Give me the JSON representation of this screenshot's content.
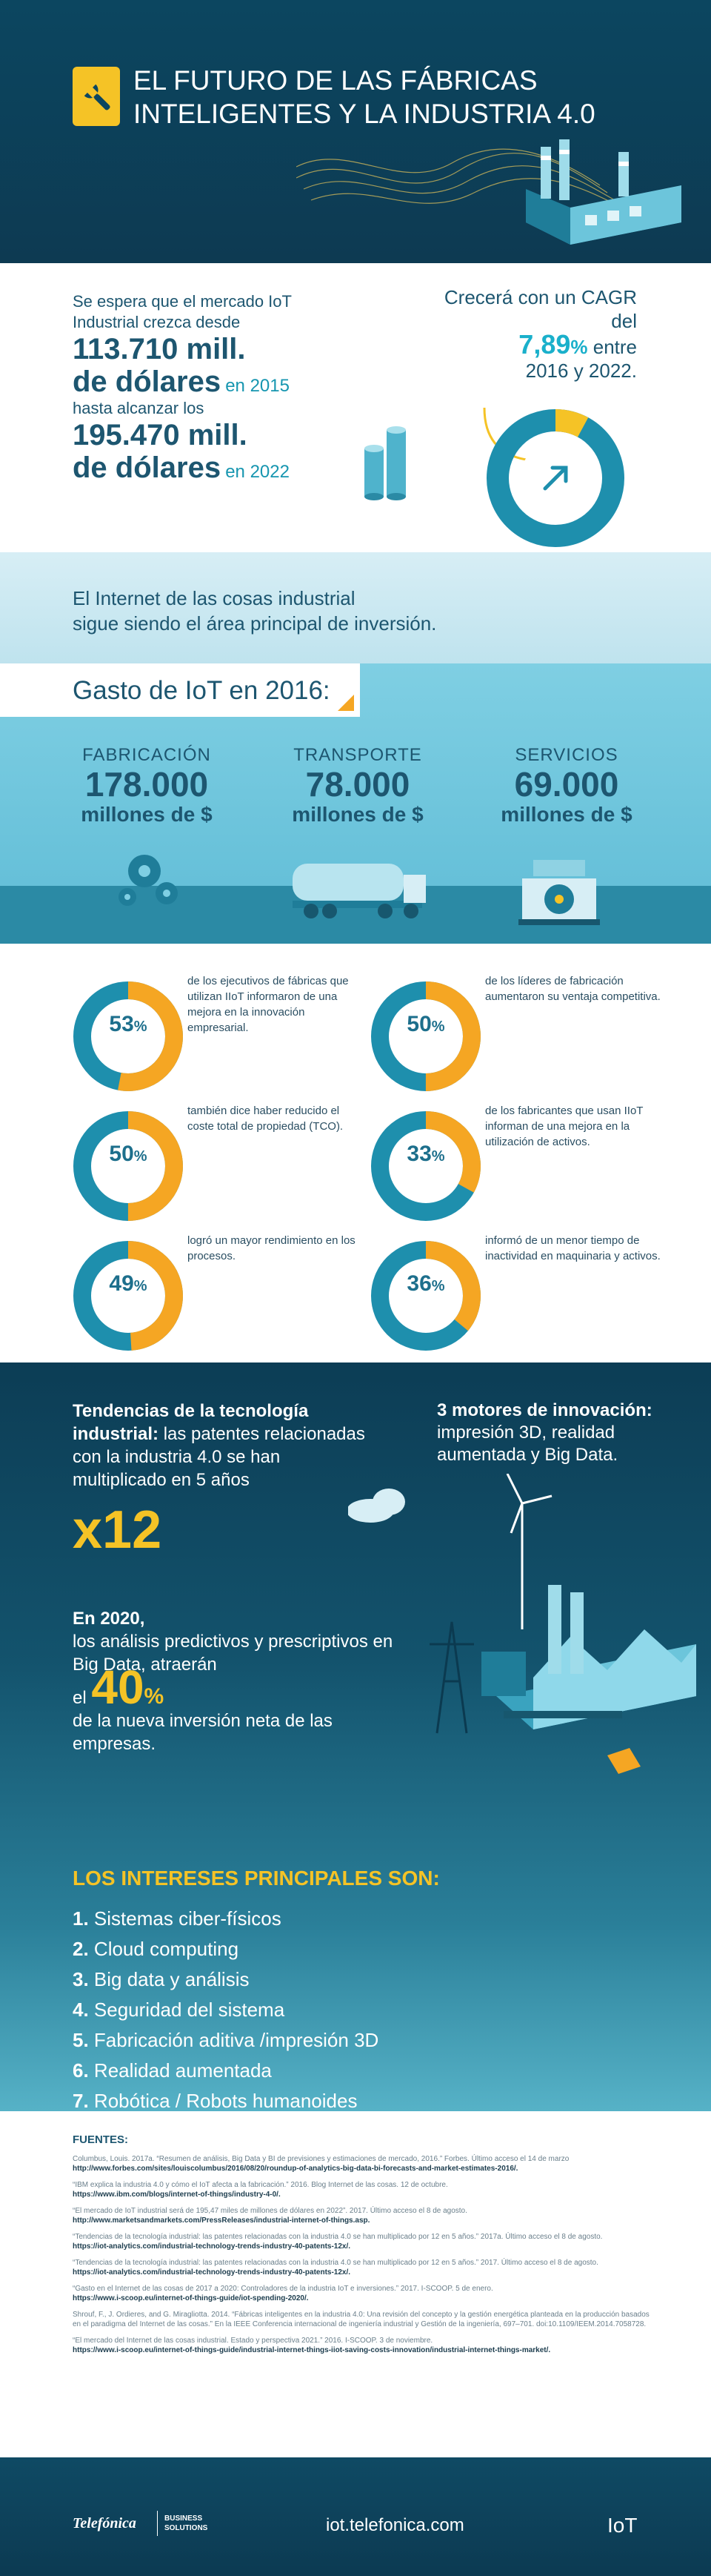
{
  "header": {
    "title_line1": "EL FUTURO DE LAS FÁBRICAS",
    "title_line2": "INTELIGENTES Y LA INDUSTRIA 4.0",
    "icon": "wrench-icon"
  },
  "market": {
    "intro": "Se espera que el mercado IoT Industrial crezca desde",
    "amount1_a": "113.710 mill.",
    "amount1_b": "de dólares",
    "year1": "en 2015",
    "mid": "hasta alcanzar los",
    "amount2_a": "195.470 mill.",
    "amount2_b": "de dólares",
    "year2": "en 2022",
    "cagr_pre": "Crecerá con un CAGR del",
    "cagr_value": "7,89",
    "cagr_sym": "%",
    "cagr_post1": "entre",
    "cagr_post2": "2016 y 2022.",
    "cagr_fraction": 0.0789
  },
  "investment": {
    "line1": "El Internet de las cosas industrial",
    "line2": "sigue siendo el área principal de inversión."
  },
  "gasto": {
    "title": "Gasto de IoT en 2016:",
    "items": [
      {
        "label": "FABRICACIÓN",
        "value": "178.000",
        "unit": "millones de $"
      },
      {
        "label": "TRANSPORTE",
        "value": "78.000",
        "unit": "millones de $"
      },
      {
        "label": "SERVICIOS",
        "value": "69.000",
        "unit": "millones de $"
      }
    ]
  },
  "stats": [
    {
      "pct": "53",
      "sym": "%",
      "value": 53,
      "text": "de los ejecutivos de fábricas que utilizan IIoT informaron de una mejora en la innovación empresarial."
    },
    {
      "pct": "50",
      "sym": "%",
      "value": 50,
      "text": "de los líderes de fabricación aumentaron su ventaja competitiva."
    },
    {
      "pct": "50",
      "sym": "%",
      "value": 50,
      "text": "también dice haber reducido el coste total de propiedad (TCO)."
    },
    {
      "pct": "33",
      "sym": "%",
      "value": 33,
      "text": "de los fabricantes que usan IIoT informan de una mejora en la utilización de activos."
    },
    {
      "pct": "49",
      "sym": "%",
      "value": 49,
      "text": "logró un mayor rendimiento en los procesos."
    },
    {
      "pct": "36",
      "sym": "%",
      "value": 36,
      "text": "informó de un menor tiempo de inactividad en maquinaria y activos."
    }
  ],
  "trends": {
    "left_bold": "Tendencias de la tecnología industrial:",
    "left_rest": "las patentes relacionadas con la industria 4.0 se han multiplicado en 5 años",
    "multiplier": "x12",
    "right_bold": "3 motores de innovación:",
    "right_rest": "impresión 3D, realidad aumentada y Big Data.",
    "y2020_bold": "En 2020,",
    "y2020_text": "los análisis predictivos y prescriptivos en Big Data, atraerán",
    "el": "el",
    "forty": "40",
    "forty_sym": "%",
    "forty_rest": "de la nueva inversión neta de las empresas.",
    "interests_title": "LOS INTERESES PRINCIPALES SON:",
    "interests": [
      {
        "n": "1.",
        "t": "Sistemas ciber-físicos"
      },
      {
        "n": "2.",
        "t": "Cloud computing"
      },
      {
        "n": "3.",
        "t": "Big data y análisis"
      },
      {
        "n": "4.",
        "t": "Seguridad del sistema"
      },
      {
        "n": "5.",
        "t": "Fabricación aditiva /impresión 3D"
      },
      {
        "n": "6.",
        "t": "Realidad aumentada"
      },
      {
        "n": "7.",
        "t": "Robótica / Robots humanoides"
      }
    ]
  },
  "sources": {
    "title": "FUENTES:",
    "items": [
      {
        "text": "Columbus, Louis. 2017a. “Resumen de análisis, Big Data y BI de previsiones y estimaciones de mercado, 2016.” Forbes. Último acceso el 14 de marzo",
        "url": "http://www.forbes.com/sites/louiscolumbus/2016/08/20/roundup-of-analytics-big-data-bi-forecasts-and-market-estimates-2016/."
      },
      {
        "text": "“IBM explica la industria 4.0 y cómo el IoT afecta a la fabricación.” 2016. Blog Internet de las cosas. 12 de octubre.",
        "url": "https://www.ibm.com/blogs/internet-of-things/industry-4-0/."
      },
      {
        "text": "“El mercado de IoT industrial será de 195,47 miles de millones de dólares en 2022”. 2017. Último acceso el 8 de agosto.",
        "url": "http://www.marketsandmarkets.com/PressReleases/industrial-internet-of-things.asp."
      },
      {
        "text": "“Tendencias de la tecnología industrial: las patentes relacionadas con la industria 4.0 se han multiplicado por 12 en 5 años.” 2017a. Último acceso el 8 de agosto.",
        "url": "https://iot-analytics.com/industrial-technology-trends-industry-40-patents-12x/."
      },
      {
        "text": "“Tendencias de la tecnología industrial: las patentes relacionadas con la industria 4.0 se han multiplicado por 12 en 5 años.” 2017. Último acceso el 8 de agosto.",
        "url": "https://iot-analytics.com/industrial-technology-trends-industry-40-patents-12x/."
      },
      {
        "text": "“Gasto en el Internet de las cosas de 2017 a 2020: Controladores de la industria IoT e inversiones.” 2017. I-SCOOP. 5 de enero.",
        "url": "https://www.i-scoop.eu/internet-of-things-guide/iot-spending-2020/."
      },
      {
        "text": "Shrouf, F., J. Ordieres, and G. Miragliotta. 2014. “Fábricas inteligentes en la industria 4.0: Una revisión del concepto y la gestión energética planteada en la producción basados en el paradigma del Internet de las cosas.” En la IEEE Conferencia internacional de ingeniería industrial y Gestión de la ingeniería, 697–701. doi:10.1109/IEEM.2014.7058728.",
        "url": ""
      },
      {
        "text": "“El mercado del Internet de las cosas industrial. Estado y perspectiva 2021.” 2016. I-SCOOP. 3 de noviembre.",
        "url": "https://www.i-scoop.eu/internet-of-things-guide/industrial-internet-things-iiot-saving-costs-innovation/industrial-internet-things-market/."
      }
    ]
  },
  "footer": {
    "brand": "Telefónica",
    "business1": "BUSINESS",
    "business2": "SOLUTIONS",
    "site": "iot.telefonica.com",
    "tag": "IoT"
  },
  "colors": {
    "navy": "#0c4660",
    "teal": "#1796b0",
    "cyan": "#1ab0cb",
    "yellow": "#f5c326",
    "orange": "#f5a623",
    "text_dark": "#1d5670"
  }
}
